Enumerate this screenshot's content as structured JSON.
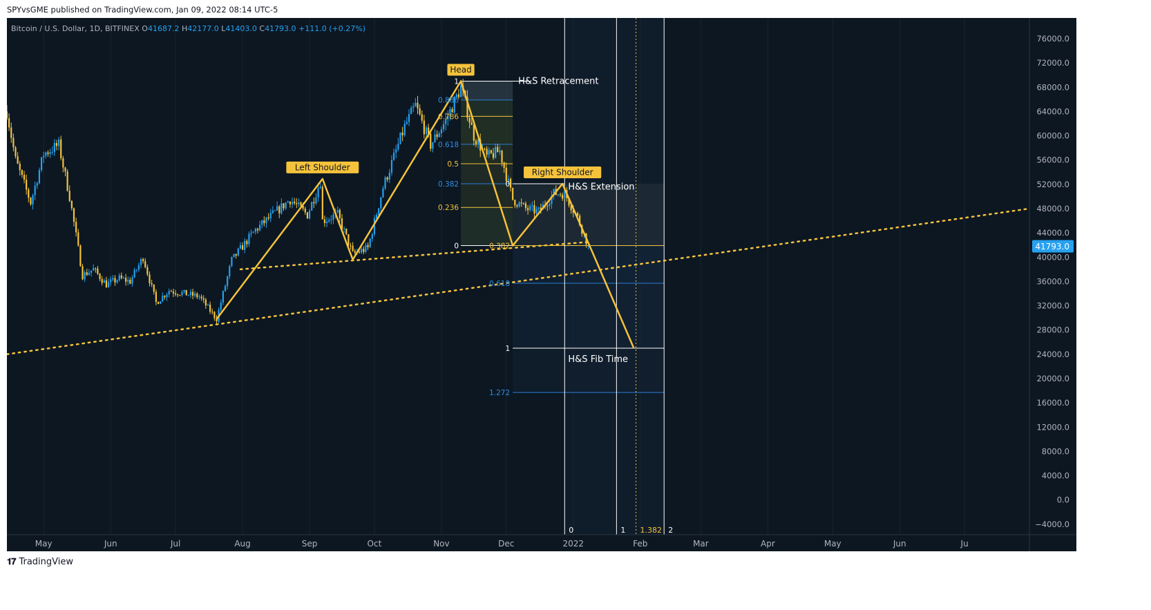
{
  "publisher_line": "SPYvsGME published on TradingView.com, Jan 09, 2022 08:14 UTC-5",
  "symbol": {
    "title": "Bitcoin / U.S. Dollar, 1D, BITFINEX",
    "open_label": "O",
    "open": "41687.2",
    "high_label": "H",
    "high": "42177.0",
    "low_label": "L",
    "low": "41403.0",
    "close_label": "C",
    "close": "41793.0",
    "change": "+111.0 (+0.27%)"
  },
  "footer_brand": "TradingView",
  "colors": {
    "background": "#0c1722",
    "up_candle": "#26a1f0",
    "down_candle": "#f5c33b",
    "pattern_line": "#f5c33b",
    "fib_blue": "#2a7fd4",
    "fib_yellow": "#f5c33b",
    "text_white": "#ffffff",
    "axis_text": "#b2b5be",
    "price_tag": "#26a1f0"
  },
  "chart_data": {
    "type": "candlestick",
    "title": "",
    "xlabel": "",
    "ylabel": "",
    "ylim": [
      -5500,
      78500
    ],
    "y_ticks": [
      76000,
      72000,
      68000,
      64000,
      60000,
      56000,
      52000,
      48000,
      44000,
      40000,
      36000,
      32000,
      28000,
      24000,
      20000,
      16000,
      12000,
      8000,
      4000,
      0,
      -4000
    ],
    "y_tick_labels": [
      "76000.0",
      "72000.0",
      "68000.0",
      "64000.0",
      "60000.0",
      "56000.0",
      "52000.0",
      "48000.0",
      "44000.0",
      "40000.0",
      "36000.0",
      "32000.0",
      "28000.0",
      "24000.0",
      "20000.0",
      "16000.0",
      "12000.0",
      "8000.0",
      "4000.0",
      "0.0",
      "−4000.0"
    ],
    "xlim": [
      "2021-04-14",
      "2022-07-31"
    ],
    "x_ticks": [
      {
        "date": "2021-05-01",
        "label": "May"
      },
      {
        "date": "2021-06-01",
        "label": "Jun"
      },
      {
        "date": "2021-07-01",
        "label": "Jul"
      },
      {
        "date": "2021-08-01",
        "label": "Aug"
      },
      {
        "date": "2021-09-01",
        "label": "Sep"
      },
      {
        "date": "2021-10-01",
        "label": "Oct"
      },
      {
        "date": "2021-11-01",
        "label": "Nov"
      },
      {
        "date": "2021-12-01",
        "label": "Dec"
      },
      {
        "date": "2022-01-01",
        "label": "2022"
      },
      {
        "date": "2022-02-01",
        "label": "Feb"
      },
      {
        "date": "2022-03-01",
        "label": "Mar"
      },
      {
        "date": "2022-04-01",
        "label": "Apr"
      },
      {
        "date": "2022-05-01",
        "label": "May"
      },
      {
        "date": "2022-06-01",
        "label": "Jun"
      },
      {
        "date": "2022-07-01",
        "label": "Ju"
      }
    ],
    "last_price": "41793.0",
    "price_path": [
      [
        "2021-04-14",
        64000
      ],
      [
        "2021-04-18",
        56000
      ],
      [
        "2021-04-25",
        49000
      ],
      [
        "2021-05-01",
        57000
      ],
      [
        "2021-05-08",
        58500
      ],
      [
        "2021-05-13",
        50000
      ],
      [
        "2021-05-19",
        37000
      ],
      [
        "2021-05-24",
        38000
      ],
      [
        "2021-05-30",
        35500
      ],
      [
        "2021-06-05",
        36500
      ],
      [
        "2021-06-10",
        36000
      ],
      [
        "2021-06-16",
        40000
      ],
      [
        "2021-06-22",
        32500
      ],
      [
        "2021-06-28",
        34500
      ],
      [
        "2021-07-05",
        34000
      ],
      [
        "2021-07-12",
        33500
      ],
      [
        "2021-07-20",
        29800
      ],
      [
        "2021-07-27",
        39500
      ],
      [
        "2021-08-07",
        44500
      ],
      [
        "2021-08-15",
        47000
      ],
      [
        "2021-08-23",
        49500
      ],
      [
        "2021-08-31",
        47000
      ],
      [
        "2021-09-06",
        52500
      ],
      [
        "2021-09-07",
        46000
      ],
      [
        "2021-09-14",
        47000
      ],
      [
        "2021-09-21",
        40500
      ],
      [
        "2021-09-28",
        41500
      ],
      [
        "2021-10-05",
        51500
      ],
      [
        "2021-10-15",
        61500
      ],
      [
        "2021-10-20",
        65000
      ],
      [
        "2021-10-27",
        58500
      ],
      [
        "2021-11-03",
        62500
      ],
      [
        "2021-11-10",
        68000
      ],
      [
        "2021-11-16",
        60000
      ],
      [
        "2021-11-22",
        56500
      ],
      [
        "2021-11-28",
        57500
      ],
      [
        "2021-12-04",
        49500
      ],
      [
        "2021-12-10",
        48000
      ],
      [
        "2021-12-16",
        47500
      ],
      [
        "2021-12-23",
        50500
      ],
      [
        "2021-12-28",
        50500
      ],
      [
        "2022-01-03",
        46500
      ],
      [
        "2022-01-08",
        41793
      ]
    ],
    "pattern_points": [
      {
        "date": "2021-07-20",
        "value": 29800
      },
      {
        "date": "2021-09-07",
        "value": 52900,
        "label": "Left Shoulder"
      },
      {
        "date": "2021-09-21",
        "value": 39600
      },
      {
        "date": "2021-11-10",
        "value": 69000,
        "label": "Head"
      },
      {
        "date": "2021-12-04",
        "value": 41900
      },
      {
        "date": "2021-12-27",
        "value": 52100,
        "label": "Right Shoulder"
      },
      {
        "date": "2022-01-10",
        "value": 40700
      },
      {
        "date": "2022-01-29",
        "value": 25000
      }
    ],
    "trendlines": [
      {
        "name": "lower neckline",
        "from": {
          "date": "2021-04-14",
          "value": 24000
        },
        "to": {
          "date": "2022-07-31",
          "value": 48000
        }
      },
      {
        "name": "upper neckline",
        "from": {
          "date": "2021-07-31",
          "value": 38000
        },
        "to": {
          "date": "2022-01-08",
          "value": 42500
        }
      }
    ],
    "annotations": [
      {
        "text": "Left Shoulder",
        "type": "tag"
      },
      {
        "text": "Head",
        "type": "tag"
      },
      {
        "text": "Right Shoulder",
        "type": "tag"
      },
      {
        "text": "H&S Retracement",
        "type": "label"
      },
      {
        "text": "H&S Extension",
        "type": "label"
      },
      {
        "text": "H&S Fib Time",
        "type": "label"
      }
    ],
    "fib_retracement": {
      "name": "H&S Retracement",
      "from_date": "2021-11-10",
      "to_date": "2021-12-04",
      "level_1_value": 69000,
      "level_0_value": 41900,
      "levels": [
        {
          "label": "1",
          "value": 69000,
          "color": "white"
        },
        {
          "label": "0.886",
          "value": 65900,
          "color": "blue"
        },
        {
          "label": "0.786",
          "value": 63200,
          "color": "yellow"
        },
        {
          "label": "0.618",
          "value": 58600,
          "color": "blue"
        },
        {
          "label": "0.5",
          "value": 55400,
          "color": "yellow"
        },
        {
          "label": "0.382",
          "value": 52100,
          "color": "blue"
        },
        {
          "label": "0.236",
          "value": 48200,
          "color": "yellow"
        },
        {
          "label": "0",
          "value": 41900,
          "color": "white"
        }
      ]
    },
    "fib_extension": {
      "name": "H&S Extension",
      "from_date": "2021-12-04",
      "to_date": "2022-02-12",
      "levels": [
        {
          "label": "0",
          "value": 52100,
          "color": "white"
        },
        {
          "label": "0.382",
          "value": 41900,
          "color": "yellow"
        },
        {
          "label": "0.618",
          "value": 35700,
          "color": "blue"
        },
        {
          "label": "1",
          "value": 25000,
          "color": "white"
        },
        {
          "label": "1.272",
          "value": 17700,
          "color": "blue"
        }
      ]
    },
    "fib_time": {
      "name": "H&S Fib Time",
      "levels": [
        {
          "label": "0",
          "date": "2021-12-28",
          "color": "white"
        },
        {
          "label": "1",
          "date": "2022-01-21",
          "color": "white"
        },
        {
          "label": "1.382",
          "date": "2022-01-30",
          "color": "yellow"
        },
        {
          "label": "2",
          "date": "2022-02-12",
          "color": "white"
        }
      ]
    }
  }
}
